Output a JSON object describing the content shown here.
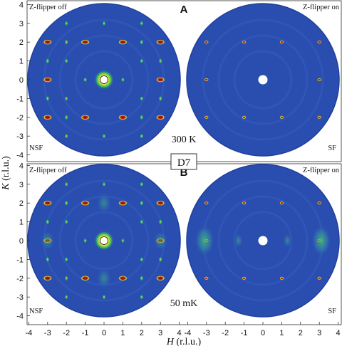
{
  "figure": {
    "y_axis_label_italic": "K",
    "y_axis_label_rest": " (r.l.u.)",
    "x_axis_label_italic": "H",
    "x_axis_label_rest": " (r.l.u.)",
    "center_label": "D7",
    "y_ticks": [
      "4",
      "3",
      "2",
      "1",
      "0",
      "-1",
      "-2",
      "-3",
      "-4"
    ],
    "x_ticks": [
      "-4",
      "-3",
      "-2",
      "-1",
      "0",
      "1",
      "2",
      "3",
      "4"
    ],
    "colors": {
      "background": "#2a4eb0",
      "disk_edge": "#1f3f9c",
      "bragg_red": "#a81e10",
      "bragg_yellow": "#f0e030",
      "diffuse_green": "#39c25a",
      "cyan": "#40d0e0"
    }
  },
  "panels": [
    {
      "row_label": "A",
      "left_title": "Z-flipper off",
      "right_title": "Z-flipper on",
      "left_corner": "NSF",
      "right_corner": "SF",
      "temperature": "300 K"
    },
    {
      "row_label": "B",
      "left_title": "Z-flipper off",
      "right_title": "Z-flipper on",
      "left_corner": "NSF",
      "right_corner": "SF",
      "temperature": "50 mK"
    }
  ]
}
